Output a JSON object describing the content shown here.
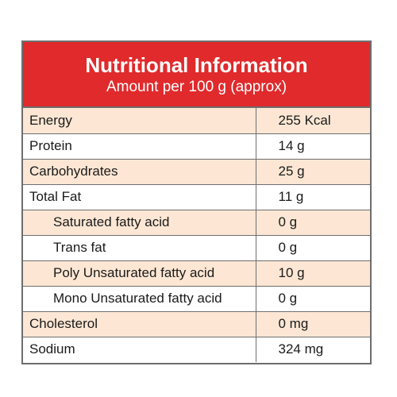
{
  "header": {
    "title": "Nutritional Information",
    "subtitle": "Amount per 100 g (approx)"
  },
  "rows": [
    {
      "name": "Energy",
      "value": "255 Kcal"
    },
    {
      "name": "Protein",
      "value": "14 g"
    },
    {
      "name": "Carbohydrates",
      "value": "25 g"
    },
    {
      "name": "Total Fat",
      "value": "11 g"
    },
    {
      "name": "Saturated fatty acid",
      "value": "0 g"
    },
    {
      "name": "Trans fat",
      "value": "0 g"
    },
    {
      "name": "Poly Unsaturated fatty acid",
      "value": "10 g"
    },
    {
      "name": "Mono Unsaturated fatty acid",
      "value": "0 g"
    },
    {
      "name": "Cholesterol",
      "value": "0 mg"
    },
    {
      "name": "Sodium",
      "value": "324 mg"
    }
  ],
  "colors": {
    "header_bg": "#e02a2c",
    "shaded_row": "#fde7d4",
    "border": "#6e6e6e"
  }
}
